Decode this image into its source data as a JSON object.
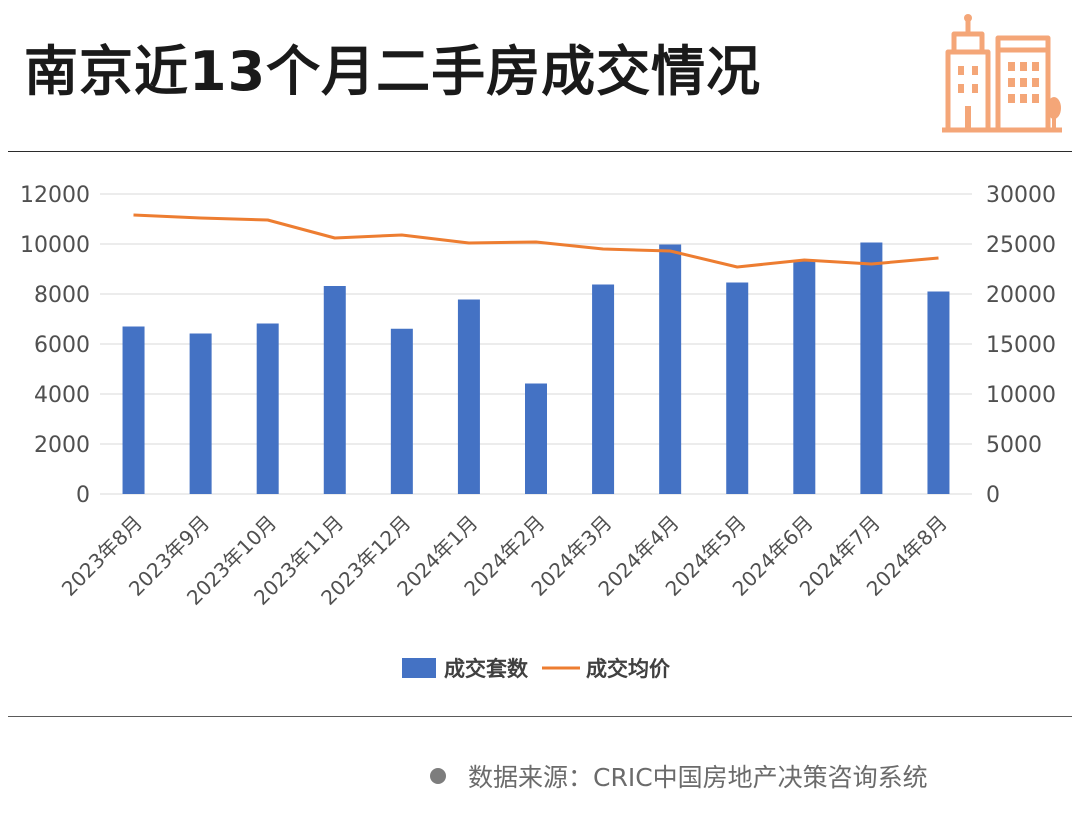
{
  "header": {
    "title": "南京近13个月二手房成交情况"
  },
  "colors": {
    "bar": "#4472c4",
    "line": "#ed7d31",
    "logo": "#f4a678",
    "grid": "#e0e0e0",
    "axis_text": "#505050"
  },
  "chart_data": {
    "type": "bar",
    "title": "",
    "categories": [
      "2023年8月",
      "2023年9月",
      "2023年10月",
      "2023年11月",
      "2023年12月",
      "2024年1月",
      "2024年2月",
      "2024年3月",
      "2024年4月",
      "2024年5月",
      "2024年6月",
      "2024年7月",
      "2024年8月"
    ],
    "series": [
      {
        "name": "成交套数",
        "type": "bar",
        "axis": "left",
        "values": [
          6700,
          6420,
          6820,
          8320,
          6610,
          7780,
          4420,
          8380,
          9980,
          8460,
          9360,
          10060,
          8100
        ]
      },
      {
        "name": "成交均价",
        "type": "line",
        "axis": "right",
        "values": [
          27900,
          27600,
          27400,
          25600,
          25900,
          25100,
          25200,
          24500,
          24300,
          22700,
          23400,
          23000,
          23600
        ]
      }
    ],
    "y_left": {
      "min": 0,
      "max": 12000,
      "ticks": [
        "0",
        "2000",
        "4000",
        "6000",
        "8000",
        "10000",
        "12000"
      ]
    },
    "y_right": {
      "min": 0,
      "max": 30000,
      "ticks": [
        "0",
        "5000",
        "10000",
        "15000",
        "20000",
        "25000",
        "30000"
      ]
    },
    "grid": true,
    "legend": "bottom",
    "xlabel": "",
    "ylabel": ""
  },
  "footer": {
    "source": "数据来源：CRIC中国房地产决策咨询系统"
  }
}
